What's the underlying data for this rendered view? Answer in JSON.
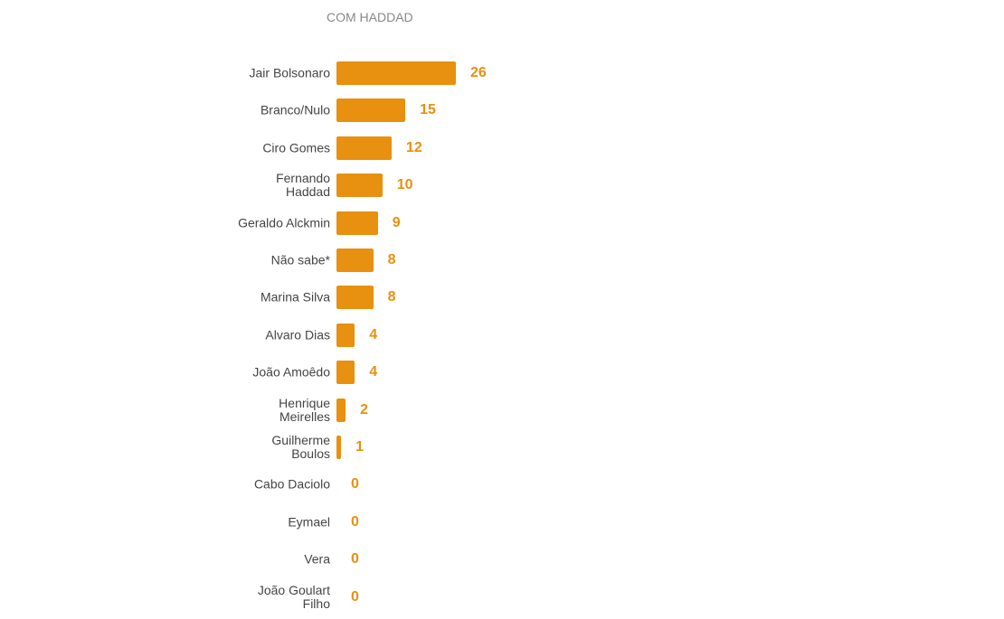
{
  "chart_data": {
    "type": "bar",
    "orientation": "horizontal",
    "title": "COM HADDAD",
    "categories": [
      "Jair Bolsonaro",
      "Branco/Nulo",
      "Ciro Gomes",
      "Fernando\nHaddad",
      "Geraldo Alckmin",
      "Não sabe*",
      "Marina Silva",
      "Alvaro Dias",
      "João Amoêdo",
      "Henrique\nMeirelles",
      "Guilherme\nBoulos",
      "Cabo Daciolo",
      "Eymael",
      "Vera",
      "João Goulart\nFilho"
    ],
    "values": [
      26,
      15,
      12,
      10,
      9,
      8,
      8,
      4,
      4,
      2,
      1,
      0,
      0,
      0,
      0
    ],
    "color": "#e8900f"
  }
}
